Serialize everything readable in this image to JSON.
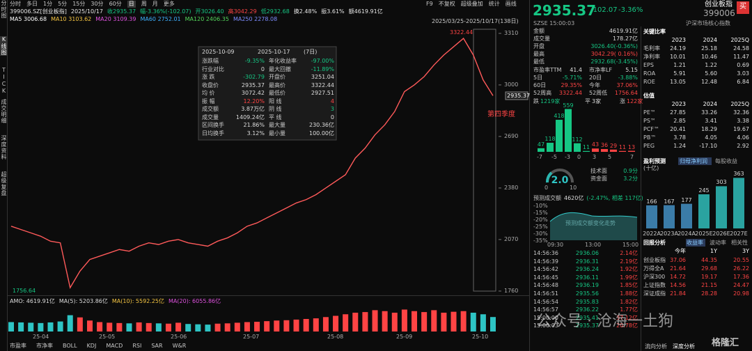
{
  "toolbar": {
    "periods": [
      "分时",
      "多日",
      "1分",
      "5分",
      "15分",
      "30分",
      "60分",
      "日",
      "周",
      "月",
      "更多"
    ],
    "tools": [
      "F9",
      "不复权",
      "超级叠加",
      "统计",
      "画线"
    ]
  },
  "sidebar": [
    "分时图",
    "K线图",
    "TICK",
    "成交明细",
    "深度资料",
    "超级复盘"
  ],
  "quote_line": [
    "399006.SZ[创业板指]",
    "2025/10/17",
    "收2935.37",
    "幅-3.36%(-102.07)",
    "开3026.40",
    "高3042.29",
    "低2932.68",
    "换2.48%",
    "振3.61%",
    "额4619.91亿"
  ],
  "ma_line": [
    "MA5 3006.68",
    "MA10 3103.62",
    "MA20 3109.39",
    "MA60 2752.01",
    "MA120 2406.35",
    "MA250 2278.08"
  ],
  "price_chart": {
    "range_label": "2025/03/25-2025/10/17(138日)",
    "high_label": "3322.44",
    "low_label": "1756.64",
    "last_label": "2935.37",
    "annotation": "第四季度",
    "ylim": [
      1743,
      3360
    ],
    "yticks": [
      3310,
      3000,
      2690,
      2380,
      2070,
      1760
    ],
    "closes": [
      2150,
      2130,
      2110,
      2090,
      2060,
      2050,
      1780,
      1880,
      1950,
      1970,
      1990,
      2010,
      2000,
      2030,
      2050,
      2040,
      2060,
      2070,
      2050,
      2040,
      2030,
      2060,
      2080,
      2110,
      2150,
      2170,
      2200,
      2230,
      2260,
      2290,
      2310,
      2340,
      2380,
      2420,
      2460,
      2560,
      2620,
      2700,
      2760,
      2840,
      2960,
      3000,
      3050,
      3120,
      3180,
      3230,
      3280,
      3180,
      3030,
      2935.37
    ],
    "volume_header": [
      "AMO: 4619.91亿",
      "MA(5): 5203.86亿",
      "MA(10): 5592.25亿",
      "MA(20): 6055.86亿"
    ],
    "volume_ylim": [
      0,
      8000
    ],
    "volumes": [
      3000,
      2900,
      2800,
      2700,
      2900,
      3200,
      5200,
      4500,
      3500,
      3000,
      2800,
      2700,
      2600,
      2900,
      2700,
      2600,
      2500,
      2800,
      2400,
      2300,
      2200,
      2500,
      2600,
      2800,
      3000,
      3100,
      3300,
      3500,
      3600,
      3800,
      4000,
      4200,
      4600,
      5000,
      5500,
      6000,
      6200,
      6800,
      6500,
      6000,
      7000,
      6500,
      6200,
      6800,
      6000,
      6300,
      6500,
      6000,
      5500,
      4619.91
    ],
    "dates": [
      "25-04",
      "25-05",
      "25-06",
      "25-07",
      "25-08",
      "25-09",
      "25-10"
    ]
  },
  "interval_popup": {
    "start": "2025-10-09",
    "end": "2025-10-17",
    "days": "(7日)",
    "rows": [
      [
        "涨跌幅",
        "-9.35%",
        "年化收益率",
        "-97.00%"
      ],
      [
        "行业对比",
        "0",
        "最大回撤",
        "-11.89%"
      ],
      [
        "涨 跌",
        "-302.79",
        "开盘价",
        "3251.04"
      ],
      [
        "收盘价",
        "2935.37",
        "最高价",
        "3322.44"
      ],
      [
        "均 价",
        "3072.42",
        "最低价",
        "2927.51"
      ],
      [
        "振 幅",
        "12.20%",
        "阳 线",
        "4"
      ],
      [
        "成交额",
        "3.87万亿",
        "阴 线",
        "3"
      ],
      [
        "成交量",
        "1409.24亿",
        "平 线",
        "0"
      ],
      [
        "区间换手",
        "21.86%",
        "最大量",
        "230.36亿"
      ],
      [
        "日均换手",
        "3.12%",
        "最小量",
        "100.00亿"
      ]
    ]
  },
  "indicator_tabs": [
    "市盈率",
    "市净率",
    "BOLL",
    "KDJ",
    "MACD",
    "RSI",
    "SAR",
    "W&R"
  ],
  "quote_panel": {
    "price": "2935.37",
    "change": "-102.07",
    "pct": "-3.36%",
    "name": "创业板指",
    "code": "399006",
    "buy": "买",
    "time": "SZSE 15:00:03",
    "tag": "沪深市场核心指数",
    "rows": [
      [
        "金额",
        "4619.91亿"
      ],
      [
        "成交量",
        "178.27亿"
      ],
      [
        "开盘",
        "3026.40(-0.36%)"
      ],
      [
        "最高",
        "3042.29( 0.16%)"
      ],
      [
        "最低",
        "2932.68(-3.45%)"
      ]
    ],
    "pairs": [
      [
        "市盈率TTM",
        "41.4",
        "市净率LF",
        "5.15"
      ],
      [
        "5日",
        "-5.71%",
        "20日",
        "-3.88%"
      ],
      [
        "60日",
        "29.35%",
        "今年",
        "37.06%"
      ],
      [
        "52周高",
        "3322.44",
        "52周低",
        "1756.64"
      ]
    ],
    "breadth": [
      "跌",
      "1219家",
      "平",
      "3家",
      "涨",
      "122家"
    ]
  },
  "distribution": {
    "values": [
      47,
      118,
      418,
      559,
      112,
      11,
      43,
      36,
      29,
      11,
      13
    ],
    "axis": [
      "-7",
      "-5",
      "-3",
      "0",
      "3",
      "5",
      "7"
    ]
  },
  "gauge": {
    "score": "2.0",
    "min": "0",
    "max": "10",
    "items": [
      [
        "技术面",
        "0.9分"
      ],
      [
        "资金面",
        "3.2分"
      ]
    ]
  },
  "forecast": {
    "title": "预测成交额",
    "value": "4620亿",
    "detail": "(-2.47%, 相差 117亿)",
    "chart_label": "预测成交额变化走势",
    "yticks": [
      "-10%",
      "-15%",
      "-20%",
      "-25%",
      "-30%",
      "-35%"
    ],
    "times": [
      "09:30",
      "13:00",
      "15:00"
    ]
  },
  "ticks": [
    [
      "14:56:36",
      "2936.06",
      "2.14亿"
    ],
    [
      "14:56:39",
      "2936.31",
      "2.19亿"
    ],
    [
      "14:56:42",
      "2936.24",
      "1.92亿"
    ],
    [
      "14:56:45",
      "2936.11",
      "1.99亿"
    ],
    [
      "14:56:48",
      "2936.19",
      "1.85亿"
    ],
    [
      "14:56:51",
      "2935.56",
      "1.88亿"
    ],
    [
      "14:56:54",
      "2935.83",
      "1.82亿"
    ],
    [
      "14:56:57",
      "2936.22",
      "1.77亿"
    ],
    [
      "15:00:00",
      "2935.41",
      "37.12亿"
    ],
    [
      "15:00:03",
      "2935.37",
      "20.78亿"
    ]
  ],
  "key_ratios": {
    "title": "关键比率",
    "years": [
      "2023",
      "2024",
      "2025Q"
    ],
    "rows": [
      [
        "毛利率",
        "24.19",
        "25.18",
        "24.58"
      ],
      [
        "净利率",
        "10.01",
        "10.46",
        "11.47"
      ],
      [
        "EPS",
        "1.21",
        "1.22",
        "0.69"
      ],
      [
        "ROA",
        "5.91",
        "5.60",
        "3.03"
      ],
      [
        "ROE",
        "13.05",
        "12.48",
        "6.84"
      ]
    ]
  },
  "valuation": {
    "title": "估值",
    "years": [
      "2023",
      "2024",
      "2025Q"
    ],
    "rows": [
      [
        "PE™",
        "27.85",
        "33.26",
        "32.36"
      ],
      [
        "PS™",
        "2.85",
        "3.41",
        "3.38"
      ],
      [
        "PCF™",
        "20.41",
        "18.29",
        "19.67"
      ],
      [
        "PB™",
        "3.78",
        "4.05",
        "4.06"
      ],
      [
        "PEG",
        "1.24",
        "-17.10",
        "2.92"
      ]
    ]
  },
  "earnings": {
    "title": "盈利预测",
    "tabs": [
      "归母净利润",
      "每股收益"
    ],
    "unit": "(十亿)",
    "categories": [
      "2022A",
      "2023A",
      "2024A",
      "2025E",
      "2026E",
      "2027E"
    ],
    "values": [
      166,
      167,
      177,
      245,
      303,
      363
    ]
  },
  "returns": {
    "title": "回报分析",
    "tabs": [
      "收益率",
      "波动率",
      "相关性"
    ],
    "columns": [
      "今年",
      "1Y",
      "3Y"
    ],
    "rows": [
      [
        "创业板指",
        "37.06",
        "44.35",
        "20.55"
      ],
      [
        "万得全A",
        "21.64",
        "29.68",
        "26.22"
      ],
      [
        "沪深300",
        "14.72",
        "19.17",
        "17.36"
      ],
      [
        "上证指数",
        "14.56",
        "21.15",
        "24.47"
      ],
      [
        "深证成指",
        "21.84",
        "28.28",
        "20.98"
      ]
    ]
  },
  "bottom_tabs": [
    "流向分析",
    "深度分析"
  ],
  "watermark": [
    "公众号 · 沧海一土狗",
    "格隆汇"
  ]
}
